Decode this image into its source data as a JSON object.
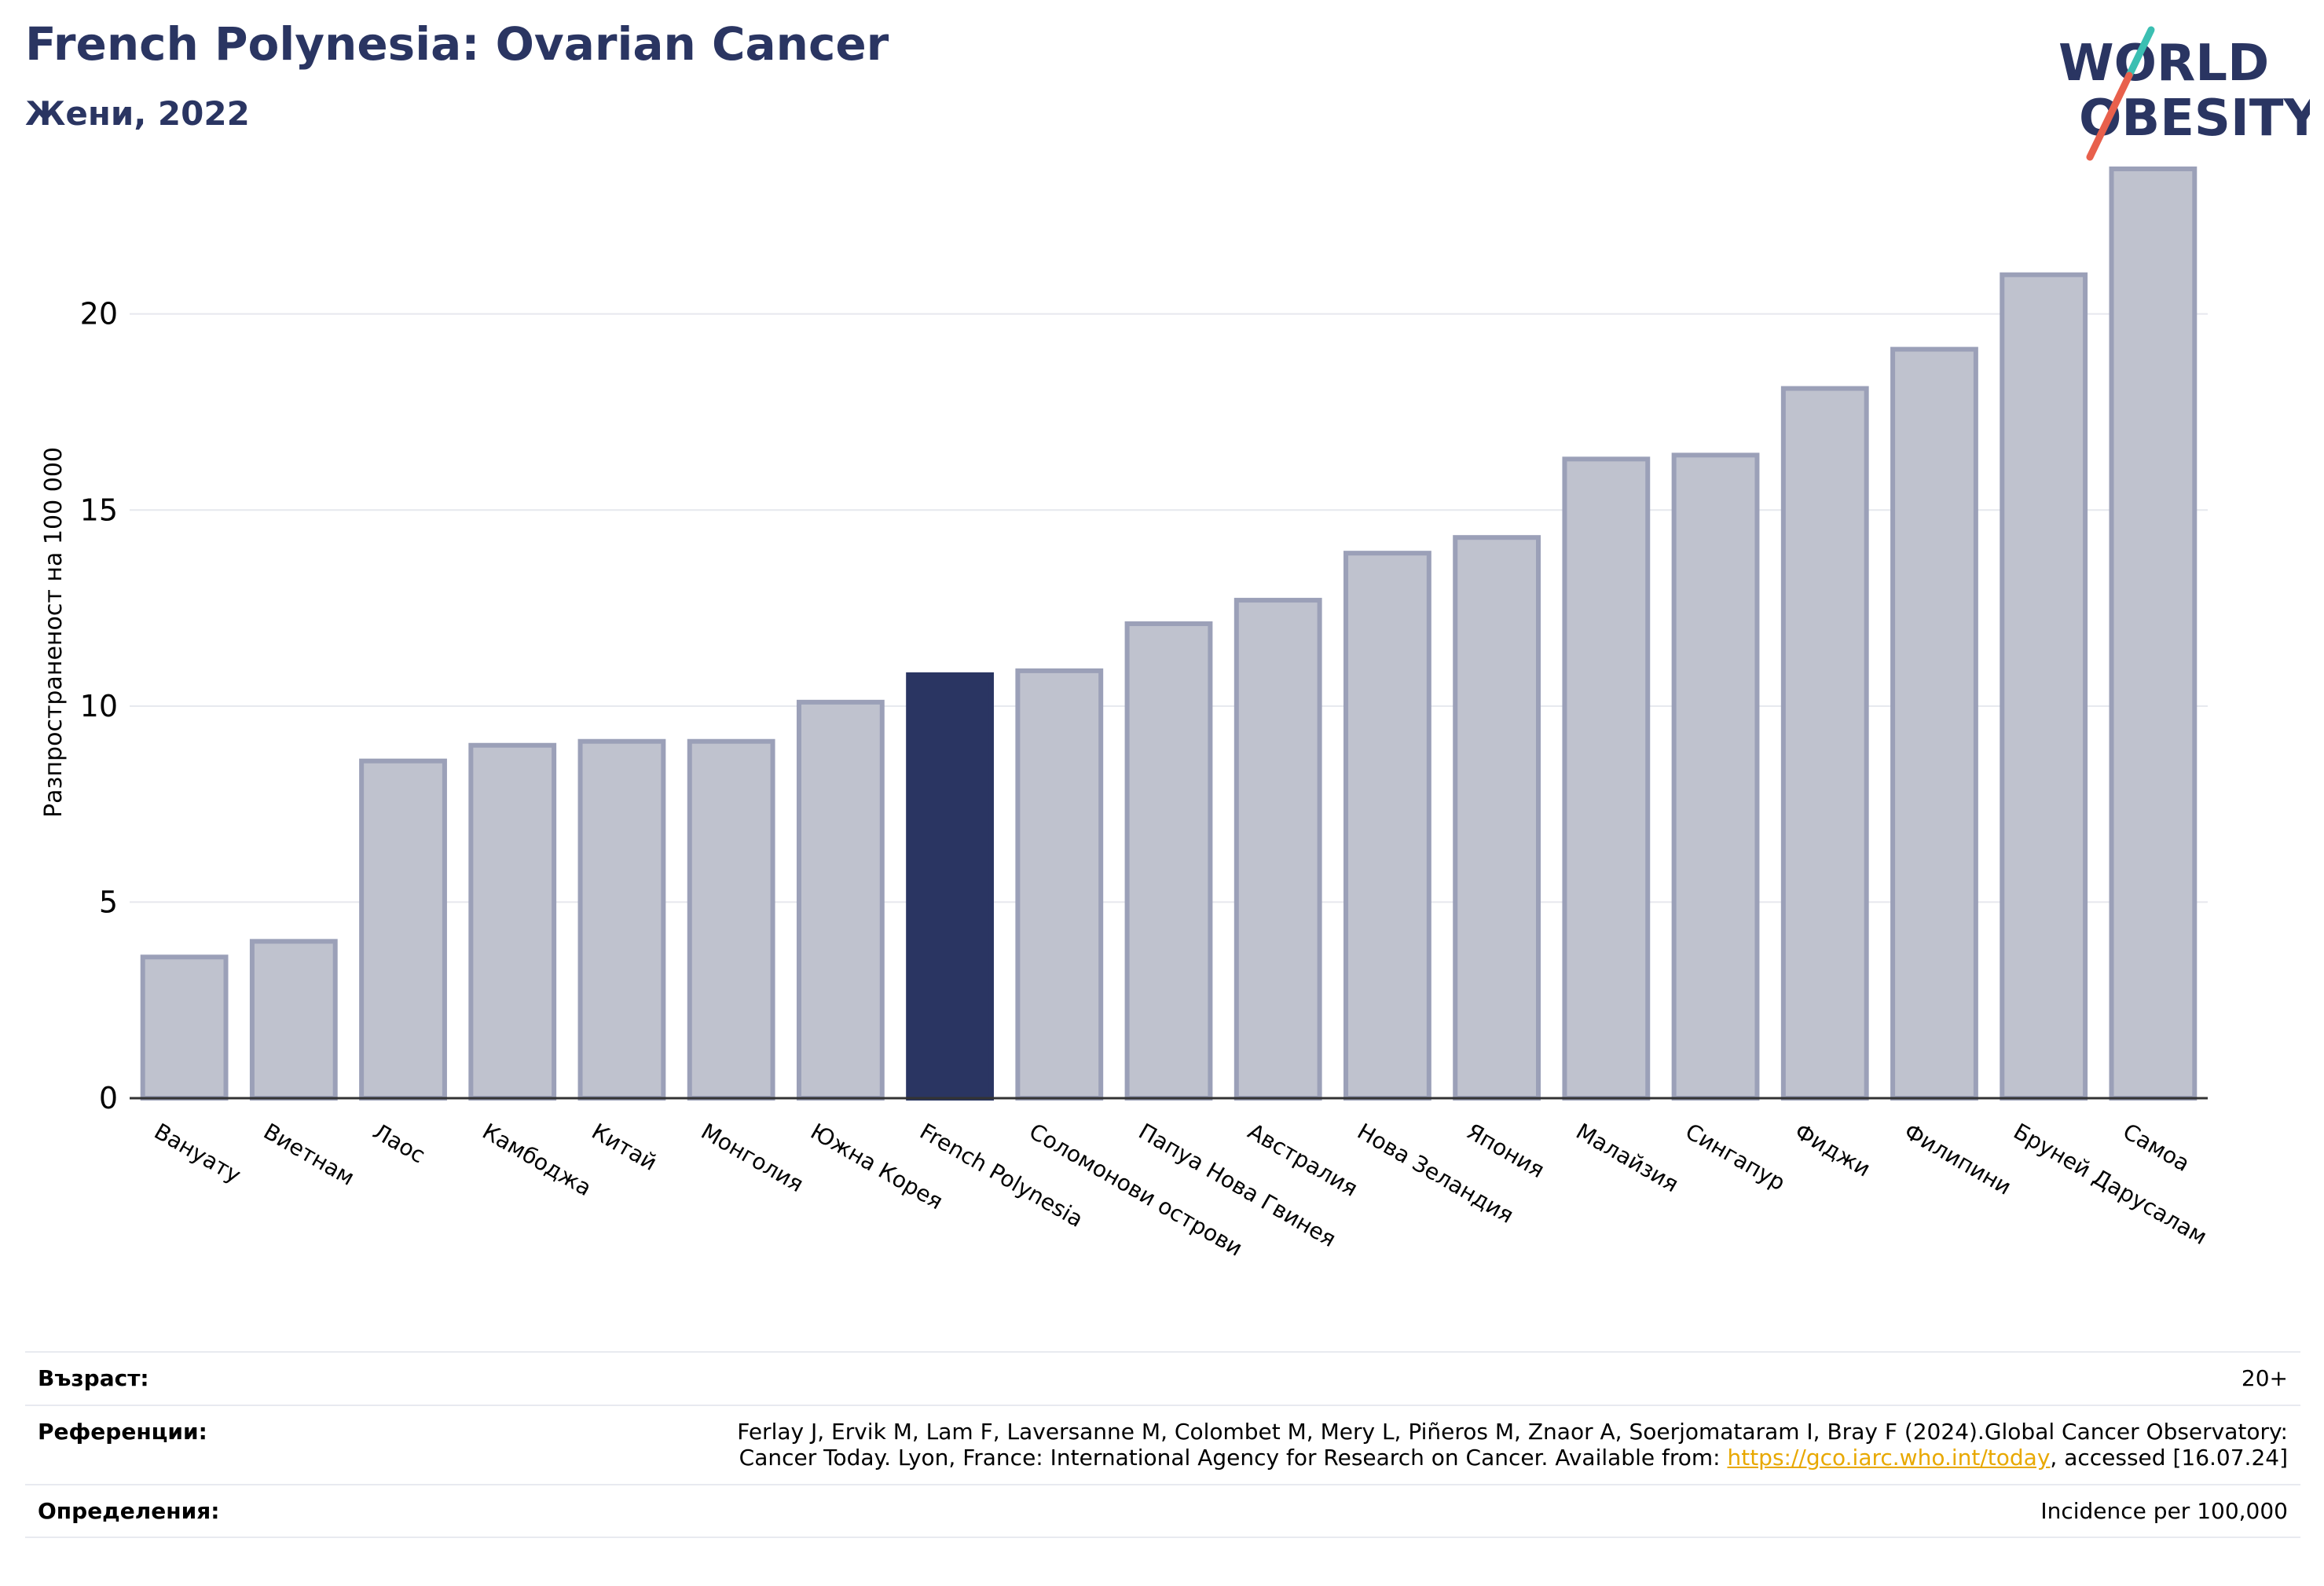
{
  "header": {
    "title": "French Polynesia: Ovarian Cancer",
    "subtitle": "Жени, 2022",
    "logo_text_1": "WORLD",
    "logo_text_2": "OBESITY"
  },
  "chart_data": {
    "type": "bar",
    "title": "French Polynesia: Ovarian Cancer",
    "subtitle": "Жени, 2022",
    "ylabel": "Разпространеност  на 100 000",
    "xlabel": "",
    "ylim": [
      0,
      24
    ],
    "yticks": [
      0,
      5,
      10,
      15,
      20
    ],
    "grid": true,
    "categories": [
      "Вануату",
      "Виетнам",
      "Лаос",
      "Камбоджа",
      "Китай",
      "Монголия",
      "Южна Корея",
      "French Polynesia",
      "Соломонови острови",
      "Папуа Нова Гвинея",
      "Австралия",
      "Нова Зеландия",
      "Япония",
      "Малайзия",
      "Сингапур",
      "Фиджи",
      "Филипини",
      "Бруней Дарусалам",
      "Самоа"
    ],
    "values": [
      3.6,
      4.0,
      8.6,
      9.0,
      9.1,
      9.1,
      10.1,
      10.8,
      10.9,
      12.1,
      12.7,
      13.9,
      14.3,
      16.3,
      16.4,
      18.1,
      19.1,
      21.0,
      23.7
    ],
    "highlight": "French Polynesia",
    "colors": {
      "bar": "#bfc2ce",
      "bar_edge": "#9ba0b8",
      "highlight": "#2a3562",
      "grid": "#e6e8ee",
      "axis": "#333333"
    }
  },
  "footer": {
    "age_label": "Възраст:",
    "age_value": "20+",
    "ref_label": "Референции:",
    "ref_text_1": "Ferlay J, Ervik M, Lam F, Laversanne M, Colombet M, Mery L, Piñeros M, Znaor A, Soerjomataram I, Bray F (2024).Global Cancer Observatory:",
    "ref_text_2": "Cancer Today. Lyon, France: International Agency for Research on Cancer. Available from: ",
    "ref_link": "https://gco.iarc.who.int/today",
    "ref_text_3": ", accessed [16.07.24]",
    "def_label": "Определения:",
    "def_value": "Incidence per 100,000"
  }
}
